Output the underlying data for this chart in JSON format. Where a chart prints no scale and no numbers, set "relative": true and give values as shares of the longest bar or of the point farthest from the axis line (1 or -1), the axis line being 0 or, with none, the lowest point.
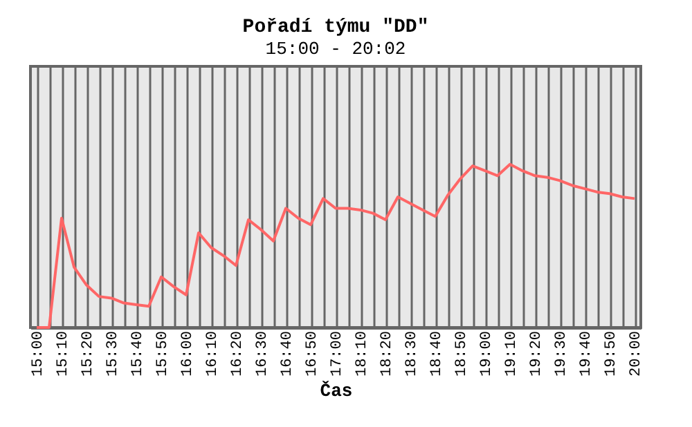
{
  "chart_data": {
    "type": "line",
    "title": "Pořadí týmu \"DD\"",
    "subtitle": "15:00 - 20:02",
    "xlabel": "Čas",
    "relative": true,
    "grid": "x",
    "marker": "none",
    "line_style": "solid",
    "categories": [
      "15:00",
      null,
      "15:10",
      null,
      "15:20",
      null,
      "15:30",
      null,
      "15:40",
      null,
      "15:50",
      null,
      "16:00",
      null,
      "16:10",
      null,
      "16:20",
      null,
      "16:30",
      null,
      "16:40",
      null,
      "16:50",
      null,
      "17:00",
      null,
      "18:10",
      null,
      "18:20",
      null,
      "18:30",
      null,
      "18:40",
      null,
      "18:50",
      null,
      "19:00",
      null,
      "19:10",
      null,
      "19:20",
      null,
      "19:30",
      null,
      "19:40",
      null,
      "19:50",
      null,
      "20:00"
    ],
    "series": [
      {
        "color": "#ff6666",
        "values": [
          0,
          0,
          0.67,
          0.37,
          0.26,
          0.19,
          0.18,
          0.15,
          0.14,
          0.13,
          0.31,
          0.25,
          0.2,
          0.58,
          0.49,
          0.44,
          0.38,
          0.66,
          0.6,
          0.53,
          0.73,
          0.67,
          0.63,
          0.79,
          0.73,
          0.73,
          0.72,
          0.7,
          0.66,
          0.8,
          0.76,
          0.72,
          0.68,
          0.81,
          0.91,
          0.99,
          0.96,
          0.93,
          1,
          0.96,
          0.93,
          0.92,
          0.9,
          0.87,
          0.85,
          0.83,
          0.82,
          0.8,
          0.79
        ]
      }
    ]
  }
}
